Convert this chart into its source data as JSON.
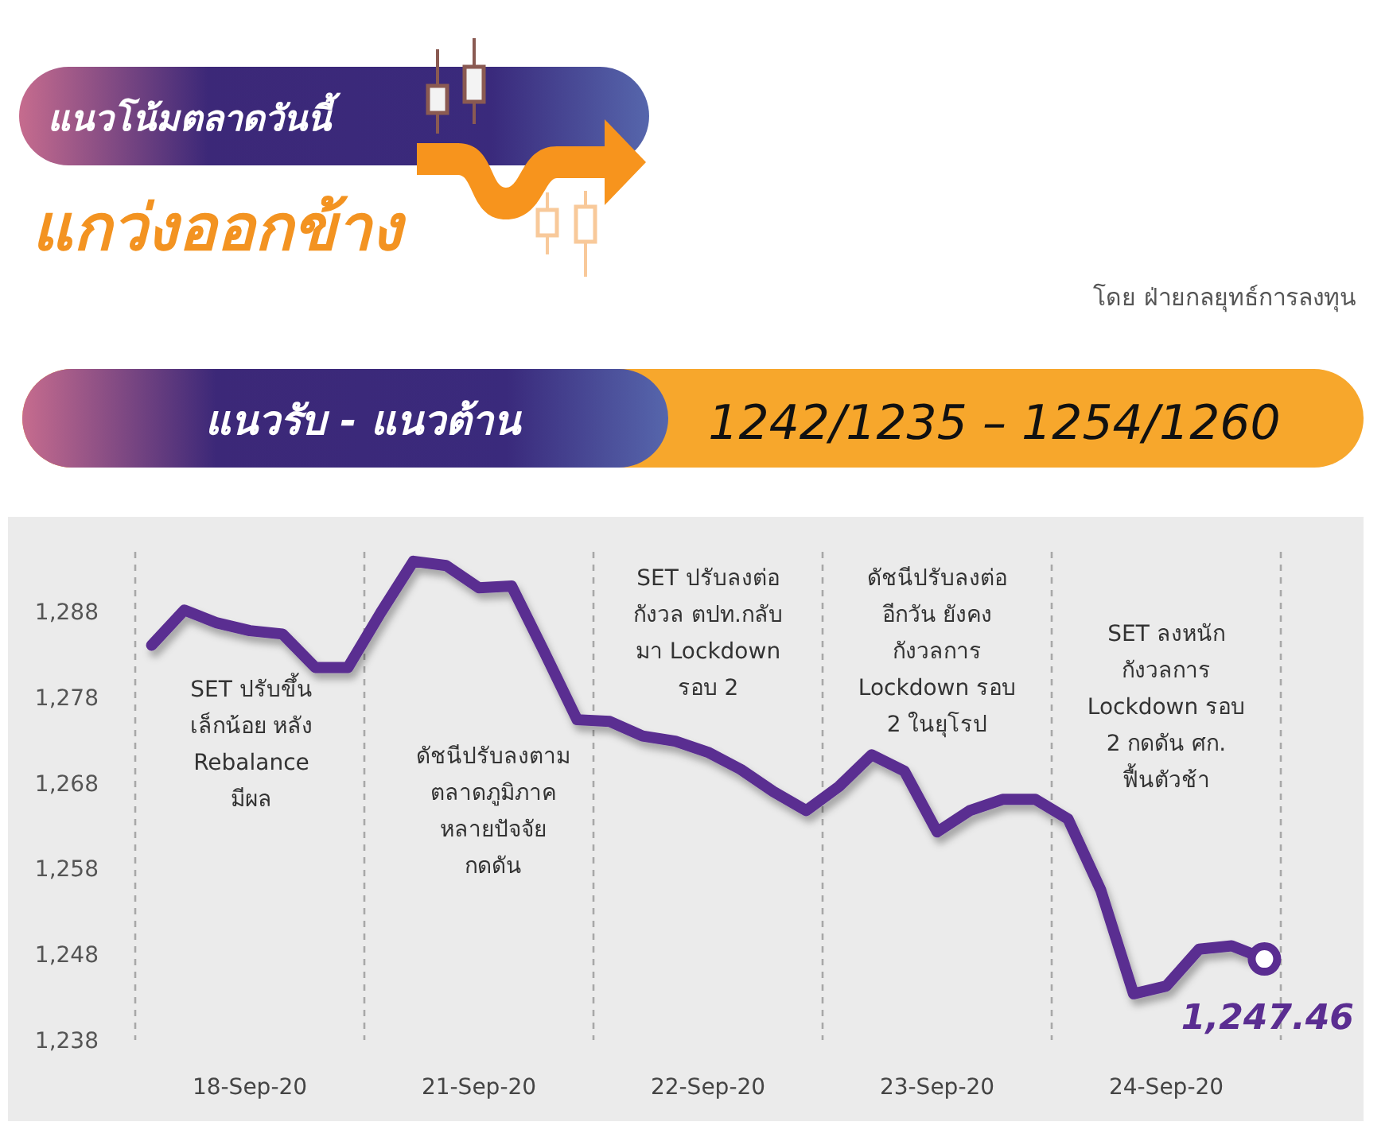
{
  "chart_data": {
    "type": "line",
    "title": "แนวโน้มตลาดวันนี้",
    "subtitle": "แกว่งออกข้าง",
    "categories": [
      null,
      null,
      null,
      "18-Sep-20",
      null,
      null,
      null,
      null,
      null,
      null,
      "21-Sep-20",
      null,
      null,
      null,
      null,
      null,
      null,
      "22-Sep-20",
      null,
      null,
      null,
      null,
      null,
      null,
      "23-Sep-20",
      null,
      null,
      null,
      null,
      null,
      null,
      "24-Sep-20",
      null,
      null,
      null
    ],
    "ylim": [
      1238,
      1295
    ],
    "yticks": [
      {
        "value": 1238,
        "label": "1,238"
      },
      {
        "value": 1248,
        "label": "1,248"
      },
      {
        "value": 1258,
        "label": "1,258"
      },
      {
        "value": 1268,
        "label": "1,268"
      },
      {
        "value": 1278,
        "label": "1,278"
      },
      {
        "value": 1288,
        "label": "1,288"
      }
    ],
    "grid": "x",
    "series": [
      {
        "color": "#5a2d91",
        "values": [
          1284.1,
          1288.2,
          1286.7,
          1285.8,
          1285.4,
          1281.5,
          1281.5,
          1287.9,
          1293.9,
          1293.4,
          1290.8,
          1291.0,
          1283.3,
          1275.4,
          1275.2,
          1273.5,
          1272.9,
          1271.6,
          1269.6,
          1267.0,
          1264.8,
          1267.6,
          1271.3,
          1269.4,
          1262.3,
          1264.8,
          1266.1,
          1266.1,
          1263.8,
          1255.5,
          1243.4,
          1244.3,
          1248.6,
          1249.0,
          1247.5
        ]
      },
      {
        "type": "scatter",
        "color": "#5a2d91",
        "marker": "circle",
        "values": [
          null,
          null,
          null,
          null,
          null,
          null,
          null,
          null,
          null,
          null,
          null,
          null,
          null,
          null,
          null,
          null,
          null,
          null,
          null,
          null,
          null,
          null,
          null,
          null,
          null,
          null,
          null,
          null,
          null,
          null,
          null,
          null,
          null,
          null,
          1247.46
        ],
        "value_labels": [
          null,
          null,
          null,
          null,
          null,
          null,
          null,
          null,
          null,
          null,
          null,
          null,
          null,
          null,
          null,
          null,
          null,
          null,
          null,
          null,
          null,
          null,
          null,
          null,
          null,
          null,
          null,
          null,
          null,
          null,
          null,
          null,
          null,
          null,
          "1,247.46"
        ]
      }
    ],
    "annotations": [
      "โดย ฝ่ายกลยุทธ์การลงทุน",
      "แนวรับ - แนวต้าน",
      "1242/1235 – 1254/1260",
      "SET ปรับขึ้น\nเล็กน้อย หลัง\nRebalance\nมีผล",
      "ดัชนีปรับลงตาม\nตลาดภูมิภาค\nหลายปัจจัย\nกดดัน",
      "SET ปรับลงต่อ\nกังวล ตปท.กลับ\nมา Lockdown\nรอบ 2",
      "ดัชนีปรับลงต่อ\nอีกวัน ยังคง\nกังวลการ\nLockdown รอบ\n2 ในยุโรป",
      "SET ลงหนัก\nกังวลการ\nLockdown รอบ\n2 กดดัน ศก.\nฟื้นตัวช้า"
    ]
  }
}
